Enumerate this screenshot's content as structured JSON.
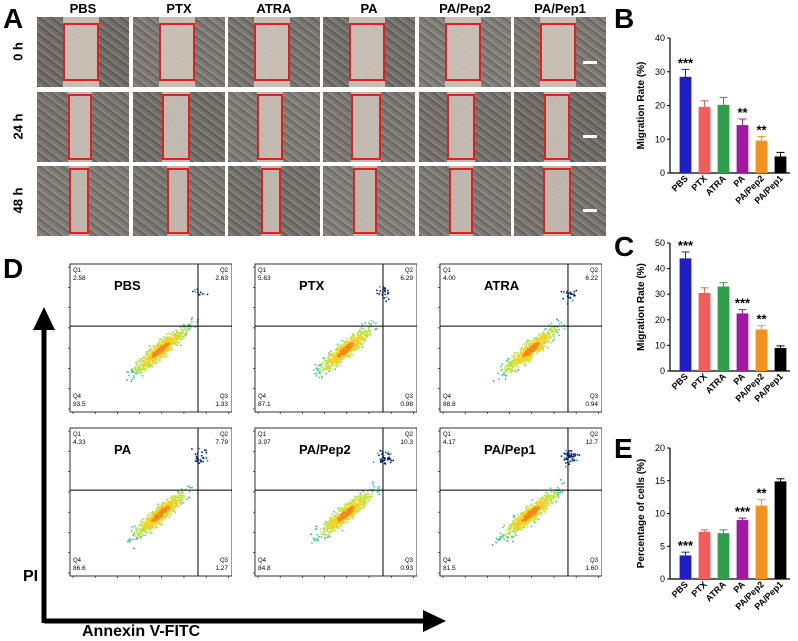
{
  "panels": {
    "a": "A",
    "b": "B",
    "c": "C",
    "d": "D",
    "e": "E"
  },
  "groups": [
    "PBS",
    "PTX",
    "ATRA",
    "PA",
    "PA/Pep2",
    "PA/Pep1"
  ],
  "time_points": [
    "0 h",
    "24 h",
    "48 h"
  ],
  "colors": {
    "PBS": "#1f1fc4",
    "PTX": "#f45b5b",
    "ATRA": "#2e9e4a",
    "PA": "#a317a3",
    "PA/Pep2": "#f5921f",
    "PA/Pep1": "#000000",
    "scratch_box": "#e02020"
  },
  "flow": {
    "x_axis_label": "Annexin V-FITC",
    "y_axis_label": "PI",
    "quadrant_labels": [
      "Q1",
      "Q2",
      "Q3",
      "Q4"
    ],
    "plots": [
      {
        "name": "PBS",
        "q1": "2.58",
        "q2": "2.63",
        "q3": "1.33",
        "q4": "93.5"
      },
      {
        "name": "PTX",
        "q1": "5.63",
        "q2": "6.29",
        "q3": "0.98",
        "q4": "87.1"
      },
      {
        "name": "ATRA",
        "q1": "4.00",
        "q2": "6.22",
        "q3": "0.94",
        "q4": "88.8"
      },
      {
        "name": "PA",
        "q1": "4.33",
        "q2": "7.79",
        "q3": "1.27",
        "q4": "86.6"
      },
      {
        "name": "PA/Pep2",
        "q1": "3.97",
        "q2": "10.3",
        "q3": "0.93",
        "q4": "84.8"
      },
      {
        "name": "PA/Pep1",
        "q1": "4.17",
        "q2": "12.7",
        "q3": "1.60",
        "q4": "81.5"
      }
    ]
  },
  "chart_data": [
    {
      "panel": "B",
      "type": "bar",
      "categories": [
        "PBS",
        "PTX",
        "ATRA",
        "PA",
        "PA/Pep2",
        "PA/Pep1"
      ],
      "values": [
        28.5,
        19.6,
        20.2,
        14.2,
        9.6,
        4.9
      ],
      "errors": [
        2.2,
        1.8,
        2.2,
        1.8,
        1.2,
        1.2
      ],
      "annotations": [
        "***",
        "",
        "",
        "**",
        "**",
        ""
      ],
      "ylabel": "Migration Rate (%)",
      "ylim": [
        0,
        40
      ],
      "yticks": [
        0,
        10,
        20,
        30,
        40
      ]
    },
    {
      "panel": "C",
      "type": "bar",
      "categories": [
        "PBS",
        "PTX",
        "ATRA",
        "PA",
        "PA/Pep2",
        "PA/Pep1"
      ],
      "values": [
        44,
        30.5,
        33,
        22.5,
        16.2,
        9
      ],
      "errors": [
        2.5,
        2,
        1.5,
        1.5,
        1.5,
        0.8
      ],
      "annotations": [
        "***",
        "",
        "",
        "***",
        "**",
        ""
      ],
      "ylabel": "Migration Rate (%)",
      "ylim": [
        0,
        50
      ],
      "yticks": [
        0,
        10,
        20,
        30,
        40,
        50
      ]
    },
    {
      "panel": "E",
      "type": "bar",
      "categories": [
        "PBS",
        "PTX",
        "ATRA",
        "PA",
        "PA/Pep2",
        "PA/Pep1"
      ],
      "values": [
        3.6,
        7.2,
        7.0,
        9.0,
        11.2,
        14.9
      ],
      "errors": [
        0.5,
        0.3,
        0.5,
        0.3,
        0.9,
        0.4
      ],
      "annotations": [
        "***",
        "",
        "",
        "***",
        "**",
        ""
      ],
      "ylabel": "Percentage of cells (%)",
      "ylim": [
        0,
        20
      ],
      "yticks": [
        0,
        5,
        10,
        15,
        20
      ]
    }
  ]
}
